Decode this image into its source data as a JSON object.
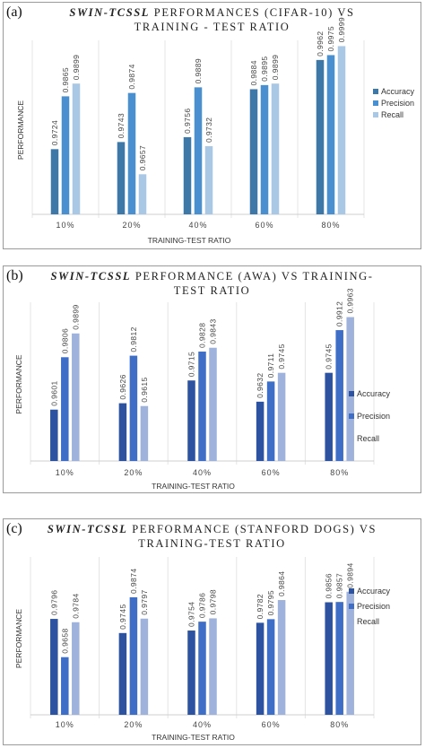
{
  "panels": [
    {
      "label": "(a)",
      "title_em": "SWIN-TCSSL",
      "title_line1": " PERFORMANCES  (CIFAR-10) VS",
      "title_line2": "TRAINING  - TEST RATIO"
    },
    {
      "label": "(b)",
      "title_em": "SWIN-TCSSL",
      "title_line1": " PERFORMANCE  (AWA) VS TRAINING-",
      "title_line2": "TEST RATIO"
    },
    {
      "label": "(c)",
      "title_em": "SWIN-TCSSL",
      "title_line1": " PERFORMANCE  (STANFORD DOGS) VS",
      "title_line2": "TRAINING-TEST  RATIO"
    }
  ],
  "colors": {
    "a": [
      "#3e78a8",
      "#4a90d0",
      "#a9c8e6"
    ],
    "b": [
      "#2c52a0",
      "#3f6ec6",
      "#9fb2dc"
    ],
    "c": [
      "#2c52a0",
      "#3f6ec6",
      "#9fb2dc"
    ]
  },
  "chart_data": [
    {
      "type": "bar",
      "xlabel": "TRAINING-TEST RATIO",
      "ylabel": "PERFORMANCE",
      "categories": [
        "10%",
        "20%",
        "40%",
        "60%",
        "80%"
      ],
      "series": [
        {
          "name": "Accuracy",
          "values": [
            0.9724,
            0.9743,
            0.9756,
            0.9884,
            0.9962
          ],
          "labels": [
            "0.9724",
            "0.9743",
            "0.9756",
            "0.9884",
            "0.9962"
          ]
        },
        {
          "name": "Precision",
          "values": [
            0.9865,
            0.9874,
            0.9889,
            0.9895,
            0.9975
          ],
          "labels": [
            "0.9865",
            "0.9874",
            "0.9889",
            "0.9895",
            "0.9975"
          ]
        },
        {
          "name": "Recall",
          "values": [
            0.9899,
            0.9657,
            0.9732,
            0.9899,
            0.9999
          ],
          "labels": [
            "0.9899",
            "0.9657",
            "0.9732",
            "0.9899",
            "0.9999"
          ]
        }
      ],
      "ylim": [
        0.955,
        1.0
      ],
      "grid": false,
      "legend": "right"
    },
    {
      "type": "bar",
      "xlabel": "TRAINING-TEST RATIO",
      "ylabel": "PERFORMANCE",
      "categories": [
        "10%",
        "20%",
        "40%",
        "60%",
        "80%"
      ],
      "series": [
        {
          "name": "Accuracy",
          "values": [
            0.9601,
            0.9626,
            0.9715,
            0.9632,
            0.9745
          ],
          "labels": [
            "0.9601",
            "0.9626",
            "0.9715",
            "0.9632",
            "0.9745"
          ]
        },
        {
          "name": "Precision",
          "values": [
            0.9806,
            0.9812,
            0.9828,
            0.9711,
            0.9912
          ],
          "labels": [
            "0.9806",
            "0.9812",
            "0.9828",
            "0.9711",
            "0.9912"
          ]
        },
        {
          "name": "Recall",
          "values": [
            0.9899,
            0.9615,
            0.9843,
            0.9745,
            0.9963
          ],
          "labels": [
            "0.9899",
            "0.9615",
            "0.9843",
            "0.9745",
            "0.9963"
          ]
        }
      ],
      "ylim": [
        0.94,
        1.0
      ],
      "grid": false,
      "legend": "right"
    },
    {
      "type": "bar",
      "xlabel": "TRAINING-TEST RATIO",
      "ylabel": "PERFORMANCE",
      "categories": [
        "10%",
        "20%",
        "40%",
        "60%",
        "80%"
      ],
      "series": [
        {
          "name": "Accuracy",
          "values": [
            0.9796,
            0.9745,
            0.9754,
            0.9782,
            0.9856
          ],
          "labels": [
            "0.9796",
            "0.9745",
            "0.9754",
            "0.9782",
            "0.9856"
          ]
        },
        {
          "name": "Precision",
          "values": [
            0.9658,
            0.9874,
            0.9786,
            0.9795,
            0.9857
          ],
          "labels": [
            "0.9658",
            "0.9874",
            "0.9786",
            "0.9795",
            "0.9857"
          ]
        },
        {
          "name": "Recall",
          "values": [
            0.9784,
            0.9797,
            0.9798,
            0.9864,
            0.9894
          ],
          "labels": [
            "0.9784",
            "0.9797",
            "0.9798",
            "0.9864",
            "0.9894"
          ]
        }
      ],
      "ylim": [
        0.945,
        1.0
      ],
      "grid": false,
      "legend": "right"
    }
  ]
}
